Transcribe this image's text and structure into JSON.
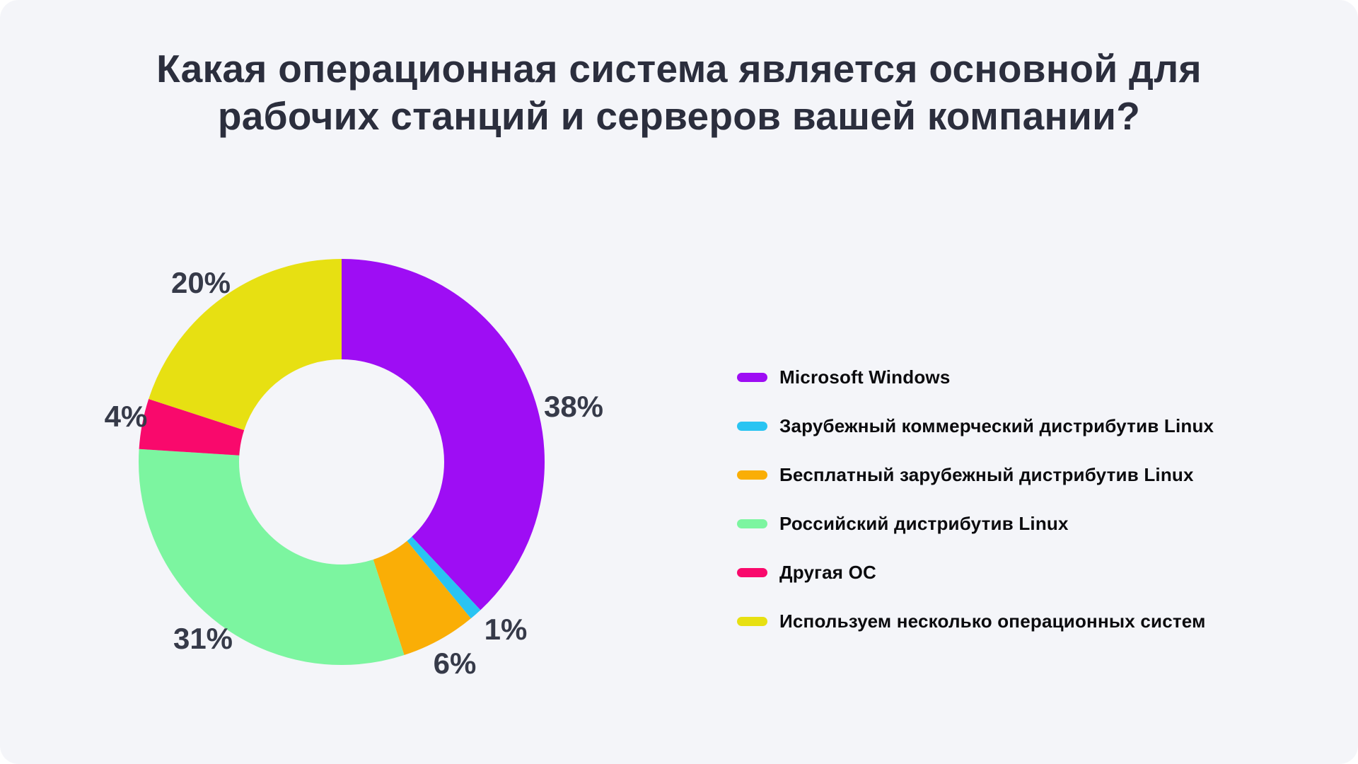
{
  "background_color": "#F4F5F9",
  "title": {
    "line1": "Какая операционная система является основной для",
    "line2": "рабочих станций и серверов вашей компании?",
    "color": "#2B2E3D"
  },
  "chart_data": {
    "type": "pie",
    "subtype": "donut",
    "title": "Какая операционная система является основной для рабочих станций и серверов вашей компании?",
    "unit": "%",
    "direction": "clockwise",
    "start_angle_deg": 0,
    "inner_radius_ratio": 0.5,
    "legend_position": "right",
    "grid": false,
    "segments": [
      {
        "label": "Microsoft Windows",
        "value": 38,
        "display": "38%",
        "color": "#9E0DF4"
      },
      {
        "label": "Зарубежный коммерческий дистрибутив Linux",
        "value": 1,
        "display": "1%",
        "color": "#29C4F2"
      },
      {
        "label": "Бесплатный зарубежный дистрибутив Linux",
        "value": 6,
        "display": "6%",
        "color": "#FAAE06"
      },
      {
        "label": "Российский дистрибутив Linux",
        "value": 31,
        "display": "31%",
        "color": "#7CF5A0"
      },
      {
        "label": "Другая ОС",
        "value": 4,
        "display": "4%",
        "color": "#F9096C"
      },
      {
        "label": "Используем несколько операционных систем",
        "value": 20,
        "display": "20%",
        "color": "#E7E012"
      }
    ]
  }
}
